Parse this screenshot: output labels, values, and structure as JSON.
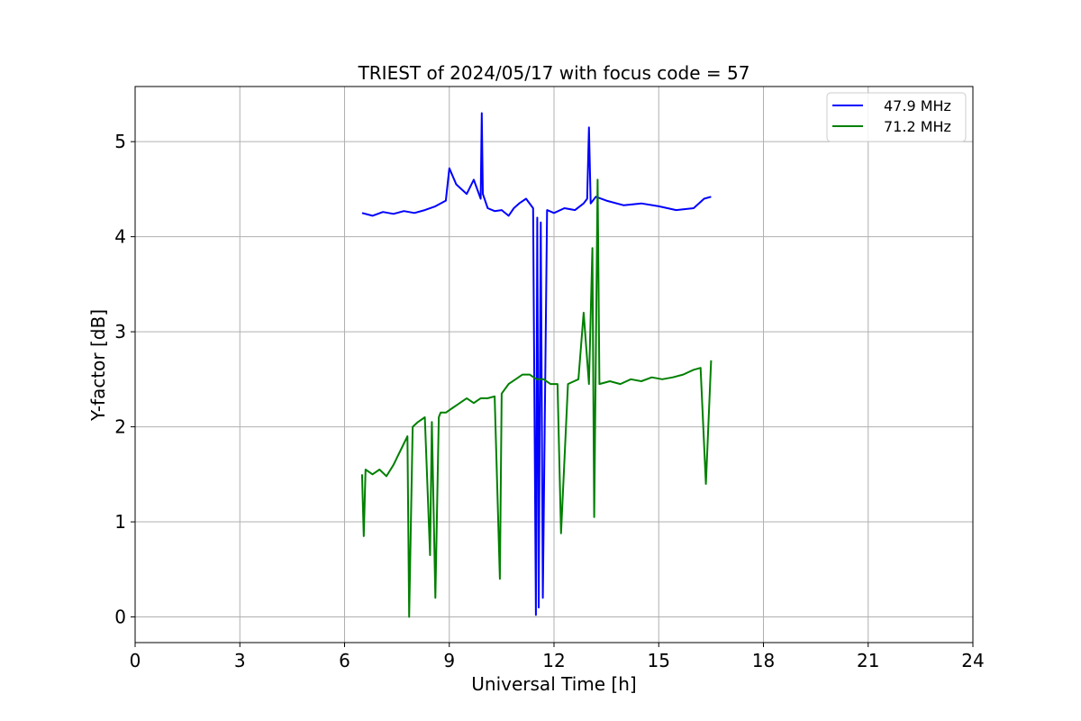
{
  "chart_data": {
    "type": "line",
    "title": "TRIEST of 2024/05/17 with focus code = 57",
    "xlabel": "Universal Time [h]",
    "ylabel": "Y-factor [dB]",
    "xlim": [
      0,
      24
    ],
    "ylim": [
      -0.27,
      5.58
    ],
    "xticks": [
      0,
      3,
      6,
      9,
      12,
      15,
      18,
      21,
      24
    ],
    "yticks": [
      0,
      1,
      2,
      3,
      4,
      5
    ],
    "grid": true,
    "legend_position": "top-right",
    "series": [
      {
        "name": "47.9 MHz",
        "color": "#0000ff",
        "x": [
          6.5,
          6.8,
          7.1,
          7.4,
          7.7,
          8.0,
          8.3,
          8.6,
          8.9,
          9.0,
          9.2,
          9.5,
          9.7,
          9.9,
          9.93,
          9.96,
          10.1,
          10.3,
          10.5,
          10.7,
          10.85,
          11.0,
          11.2,
          11.4,
          11.48,
          11.52,
          11.56,
          11.62,
          11.68,
          11.8,
          12.0,
          12.3,
          12.6,
          12.85,
          12.95,
          13.0,
          13.05,
          13.2,
          13.5,
          14.0,
          14.5,
          15.0,
          15.5,
          16.0,
          16.3,
          16.5
        ],
        "y": [
          4.25,
          4.22,
          4.26,
          4.24,
          4.27,
          4.25,
          4.28,
          4.32,
          4.38,
          4.72,
          4.55,
          4.45,
          4.6,
          4.4,
          5.3,
          4.45,
          4.3,
          4.27,
          4.28,
          4.22,
          4.3,
          4.35,
          4.4,
          4.3,
          0.02,
          4.2,
          0.1,
          4.15,
          0.2,
          4.28,
          4.25,
          4.3,
          4.28,
          4.35,
          4.4,
          5.15,
          4.35,
          4.42,
          4.38,
          4.33,
          4.35,
          4.32,
          4.28,
          4.3,
          4.4,
          4.42
        ]
      },
      {
        "name": "71.2 MHz",
        "color": "#008000",
        "x": [
          6.5,
          6.55,
          6.6,
          6.8,
          7.0,
          7.2,
          7.4,
          7.6,
          7.8,
          7.85,
          7.95,
          8.1,
          8.3,
          8.45,
          8.5,
          8.6,
          8.7,
          8.75,
          8.9,
          9.1,
          9.3,
          9.5,
          9.7,
          9.9,
          10.1,
          10.3,
          10.45,
          10.5,
          10.7,
          10.9,
          11.1,
          11.3,
          11.5,
          11.7,
          11.9,
          12.1,
          12.2,
          12.4,
          12.7,
          12.85,
          13.0,
          13.1,
          13.15,
          13.25,
          13.3,
          13.6,
          13.9,
          14.2,
          14.5,
          14.8,
          15.1,
          15.4,
          15.7,
          16.0,
          16.2,
          16.35,
          16.5
        ],
        "y": [
          1.5,
          0.85,
          1.55,
          1.5,
          1.55,
          1.48,
          1.6,
          1.75,
          1.9,
          0.0,
          2.0,
          2.05,
          2.1,
          0.65,
          2.05,
          0.2,
          2.1,
          2.15,
          2.15,
          2.2,
          2.25,
          2.3,
          2.25,
          2.3,
          2.3,
          2.32,
          0.4,
          2.35,
          2.45,
          2.5,
          2.55,
          2.55,
          2.5,
          2.5,
          2.45,
          2.45,
          0.88,
          2.45,
          2.5,
          3.2,
          2.45,
          3.88,
          1.05,
          4.6,
          2.45,
          2.48,
          2.45,
          2.5,
          2.48,
          2.52,
          2.5,
          2.52,
          2.55,
          2.6,
          2.62,
          1.4,
          2.7
        ]
      }
    ]
  }
}
